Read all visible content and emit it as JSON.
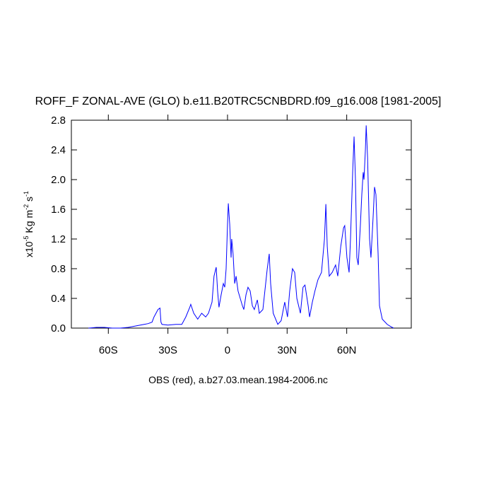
{
  "chart_data": {
    "type": "line",
    "title": "ROFF_F ZONAL-AVE (GLO) b.e11.B20TRC5CNBDRD.f09_g16.008 [1981-2005]",
    "ylabel_parts": [
      "x10",
      "-5",
      " Kg m",
      "-2",
      " s",
      "-1"
    ],
    "xlabel": "OBS (red), a.b27.03.mean.1984-2006.nc",
    "xlim": [
      -78.6,
      92.5
    ],
    "ylim": [
      0,
      2.8
    ],
    "xticks": [
      {
        "value": -60,
        "label": "60S"
      },
      {
        "value": -30,
        "label": "30S"
      },
      0,
      {
        "value": 30,
        "label": "30N"
      },
      {
        "value": 60,
        "label": "60N"
      }
    ],
    "yticks": [
      {
        "value": 0,
        "label": "0.0"
      },
      0.4,
      0.8,
      1.2,
      1.6,
      {
        "value": 2,
        "label": "2.0"
      },
      2.4,
      2.8
    ],
    "series": [
      {
        "color": "#0000ff",
        "x": [
          -70,
          -66,
          -62,
          -58,
          -54,
          -50,
          -46,
          -42,
          -40,
          -38,
          -37,
          -36,
          -35,
          -34,
          -33.5,
          -33,
          -30,
          -26,
          -23,
          -21,
          -19,
          -18.5,
          -17,
          -15,
          -13,
          -11,
          -9.6,
          -7.8,
          -6.8,
          -5.7,
          -5,
          -4.3,
          -3.2,
          -2.1,
          -1.4,
          -0.7,
          0,
          0.4,
          1.1,
          1.8,
          2.1,
          2.8,
          3.6,
          4.3,
          5.3,
          6.4,
          7.5,
          8.2,
          9.3,
          10.3,
          11.4,
          12.5,
          13.5,
          15,
          16,
          17.8,
          20,
          21,
          21.7,
          23,
          25.3,
          27,
          28.8,
          30.2,
          31.3,
          32.7,
          33.8,
          34.9,
          36.7,
          38,
          39,
          40.6,
          41.3,
          42.7,
          44,
          45.5,
          47.3,
          48.8,
          49.5,
          50.2,
          51.2,
          52.7,
          54.4,
          55.5,
          57,
          58.4,
          59,
          60.1,
          61.2,
          61.9,
          63,
          63.7,
          64.4,
          65.1,
          65.8,
          66.9,
          67.6,
          68.3,
          68.7,
          69.4,
          69.8,
          70.5,
          71.5,
          72.2,
          73.3,
          74,
          74.7,
          75.8,
          76.5,
          77.9,
          80.4,
          82.2,
          83.6
        ],
        "values": [
          0.0,
          0.01,
          0.01,
          0.0,
          0.0,
          0.01,
          0.03,
          0.05,
          0.06,
          0.08,
          0.15,
          0.2,
          0.25,
          0.27,
          0.08,
          0.05,
          0.04,
          0.05,
          0.05,
          0.15,
          0.28,
          0.32,
          0.2,
          0.12,
          0.2,
          0.15,
          0.2,
          0.35,
          0.7,
          0.82,
          0.5,
          0.28,
          0.45,
          0.6,
          0.55,
          0.8,
          1.4,
          1.68,
          1.4,
          0.95,
          1.2,
          1.0,
          0.6,
          0.7,
          0.5,
          0.4,
          0.3,
          0.25,
          0.45,
          0.55,
          0.5,
          0.3,
          0.25,
          0.38,
          0.2,
          0.25,
          0.8,
          1.0,
          0.6,
          0.2,
          0.05,
          0.1,
          0.35,
          0.15,
          0.5,
          0.8,
          0.75,
          0.4,
          0.2,
          0.55,
          0.58,
          0.3,
          0.15,
          0.35,
          0.5,
          0.65,
          0.75,
          1.2,
          1.67,
          1.1,
          0.7,
          0.75,
          0.85,
          0.7,
          1.1,
          1.35,
          1.38,
          0.95,
          0.75,
          1.2,
          2.1,
          2.58,
          2.0,
          0.95,
          0.85,
          1.4,
          1.8,
          2.1,
          2.0,
          2.4,
          2.73,
          2.3,
          1.2,
          0.95,
          1.5,
          1.9,
          1.8,
          1.0,
          0.3,
          0.12,
          0.05,
          0.02,
          0.0
        ]
      }
    ]
  }
}
